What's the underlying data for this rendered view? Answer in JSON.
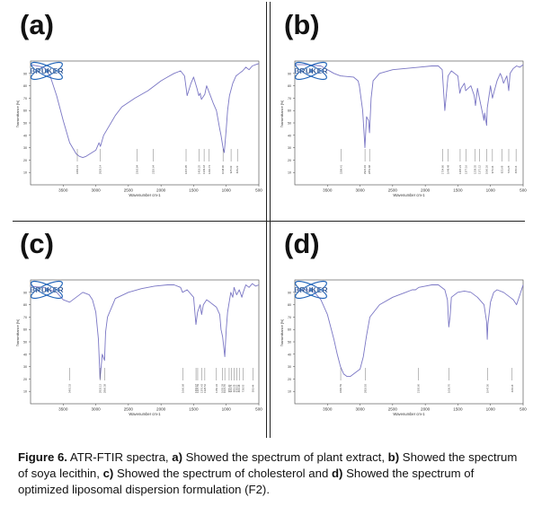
{
  "figure": {
    "caption": {
      "label": "Figure 6.",
      "t1": " ATR-FTIR spectra, ",
      "a": "a)",
      "t2": " Showed the spectrum of plant extract, ",
      "b": "b)",
      "t3": " Showed the spectrum of soya lecithin, ",
      "c": "c)",
      "t4": " Showed the spectrum of cholesterol and ",
      "d": "d)",
      "t5": " Showed the spectrum of optimized liposomal dispersion formulation (F2)."
    }
  },
  "colors": {
    "line": "#7a76c4",
    "axis": "#444444",
    "logo_blue": "#1f63b8",
    "logo_text": "#0d3b83"
  },
  "chart_data": [
    {
      "panel_label": "(a)",
      "type": "line",
      "logo": "BRUKER",
      "xlabel": "Wavenumber cm-1",
      "ylabel": "Transmittance [%]",
      "xlim": [
        4000,
        500
      ],
      "ylim": [
        0,
        100
      ],
      "xticks": [
        3500,
        3000,
        2500,
        2000,
        1500,
        1000,
        500
      ],
      "yticks": [
        10,
        20,
        30,
        40,
        50,
        60,
        70,
        80,
        90
      ],
      "series": [
        {
          "x": [
            4000,
            3800,
            3700,
            3600,
            3500,
            3400,
            3300,
            3250,
            3200,
            3150,
            3000,
            2950,
            2930,
            2880,
            2700,
            2600,
            2400,
            2200,
            2100,
            2000,
            1900,
            1800,
            1700,
            1640,
            1600,
            1540,
            1500,
            1450,
            1420,
            1400,
            1380,
            1330,
            1300,
            1250,
            1200,
            1150,
            1100,
            1080,
            1050,
            1030,
            1000,
            980,
            950,
            900,
            850,
            800,
            750,
            700,
            650,
            600,
            550,
            500
          ],
          "y": [
            97,
            95,
            88,
            72,
            52,
            34,
            25,
            23,
            22,
            23,
            28,
            34,
            31,
            40,
            56,
            63,
            70,
            76,
            80,
            84,
            87,
            90,
            92,
            88,
            72,
            82,
            87,
            78,
            72,
            74,
            69,
            73,
            80,
            73,
            66,
            60,
            45,
            40,
            30,
            26,
            45,
            60,
            72,
            82,
            88,
            90,
            92,
            95,
            93,
            96,
            97,
            98
          ]
        }
      ],
      "peaks": [
        "3283.31",
        "2929.14",
        "2363.84",
        "2119.64",
        "1615.95",
        "1419.25",
        "1339.18",
        "1260.73",
        "1048.90",
        "925.93",
        "828.23"
      ]
    },
    {
      "panel_label": "(b)",
      "type": "line",
      "logo": "BRUKER",
      "xlabel": "Wavenumber cm-1",
      "ylabel": "Transmittance [%]",
      "xlim": [
        4000,
        500
      ],
      "ylim": [
        0,
        100
      ],
      "xticks": [
        3500,
        3000,
        2500,
        2000,
        1500,
        1000,
        500
      ],
      "yticks": [
        10,
        20,
        30,
        40,
        50,
        60,
        70,
        80,
        90
      ],
      "series": [
        {
          "x": [
            4000,
            3800,
            3600,
            3500,
            3400,
            3300,
            3100,
            3030,
            3010,
            2960,
            2925,
            2900,
            2870,
            2855,
            2830,
            2800,
            2700,
            2500,
            2300,
            2100,
            1900,
            1800,
            1740,
            1700,
            1650,
            1600,
            1500,
            1470,
            1450,
            1400,
            1380,
            1300,
            1250,
            1230,
            1200,
            1170,
            1100,
            1090,
            1060,
            1050,
            1000,
            970,
            950,
            900,
            850,
            820,
            800,
            750,
            720,
            700,
            650,
            600,
            550,
            500
          ],
          "y": [
            97,
            97,
            96,
            93,
            90,
            88,
            87,
            84,
            80,
            60,
            30,
            55,
            52,
            42,
            70,
            84,
            90,
            93,
            94,
            95,
            96,
            96,
            93,
            60,
            88,
            92,
            88,
            74,
            78,
            82,
            76,
            80,
            72,
            64,
            78,
            70,
            52,
            58,
            48,
            62,
            80,
            70,
            74,
            84,
            90,
            86,
            82,
            88,
            76,
            90,
            94,
            96,
            95,
            97
          ]
        }
      ],
      "peaks": [
        "3288.41",
        "2923.93",
        "2853.88",
        "1734.86",
        "1649.48",
        "1465.23",
        "1377.16",
        "1239.35",
        "1171.12",
        "1060.26",
        "970.34",
        "823.69",
        "720.25",
        "608.14"
      ]
    },
    {
      "panel_label": "(c)",
      "type": "line",
      "logo": "BRUKER",
      "xlabel": "Wavenumber cm-1",
      "ylabel": "Transmittance [%]",
      "xlim": [
        4000,
        500
      ],
      "ylim": [
        0,
        100
      ],
      "xticks": [
        3500,
        3000,
        2500,
        2000,
        1500,
        1000,
        500
      ],
      "yticks": [
        10,
        20,
        30,
        40,
        50,
        60,
        70,
        80,
        90
      ],
      "series": [
        {
          "x": [
            4000,
            3800,
            3600,
            3500,
            3400,
            3300,
            3200,
            3100,
            3050,
            3000,
            2960,
            2935,
            2900,
            2866,
            2850,
            2820,
            2700,
            2500,
            2300,
            2100,
            1900,
            1800,
            1700,
            1670,
            1600,
            1500,
            1465,
            1440,
            1400,
            1378,
            1350,
            1300,
            1250,
            1200,
            1150,
            1100,
            1080,
            1055,
            1022,
            1000,
            980,
            955,
            930,
            900,
            880,
            840,
            800,
            760,
            740,
            700,
            650,
            600,
            550,
            500
          ],
          "y": [
            95,
            94,
            90,
            84,
            82,
            86,
            90,
            88,
            84,
            74,
            52,
            20,
            40,
            35,
            58,
            70,
            85,
            90,
            93,
            95,
            96,
            96,
            94,
            90,
            92,
            86,
            64,
            74,
            80,
            72,
            80,
            84,
            82,
            80,
            78,
            72,
            60,
            54,
            38,
            60,
            74,
            82,
            90,
            86,
            94,
            88,
            92,
            86,
            90,
            96,
            94,
            97,
            95,
            96
          ]
        }
      ],
      "peaks": [
        "3401.33",
        "2933.13",
        "2866.38",
        "1666.68",
        "1463.67",
        "1437.59",
        "1376.43",
        "1328.52",
        "1150.34",
        "1055.29",
        "1021.70",
        "955.40",
        "923.74",
        "880.29",
        "838.62",
        "800.38",
        "738.55",
        "590.44"
      ]
    },
    {
      "panel_label": "(d)",
      "type": "line",
      "logo": "BRUKER",
      "xlabel": "Wavenumber cm-1",
      "ylabel": "Transmittance [%]",
      "xlim": [
        4000,
        500
      ],
      "ylim": [
        0,
        100
      ],
      "xticks": [
        3500,
        3000,
        2500,
        2000,
        1500,
        1000,
        500
      ],
      "yticks": [
        10,
        20,
        30,
        40,
        50,
        60,
        70,
        80,
        90
      ],
      "series": [
        {
          "x": [
            4000,
            3800,
            3700,
            3600,
            3500,
            3400,
            3350,
            3300,
            3250,
            3200,
            3150,
            3100,
            3000,
            2950,
            2900,
            2850,
            2700,
            2500,
            2300,
            2200,
            2150,
            2100,
            2000,
            1900,
            1800,
            1700,
            1660,
            1640,
            1620,
            1600,
            1500,
            1400,
            1300,
            1200,
            1100,
            1060,
            1050,
            1040,
            1000,
            950,
            900,
            800,
            700,
            650,
            600,
            550,
            500
          ],
          "y": [
            92,
            92,
            90,
            84,
            72,
            52,
            40,
            30,
            24,
            22,
            22,
            24,
            28,
            38,
            55,
            70,
            80,
            86,
            90,
            92,
            92,
            94,
            95,
            96,
            96,
            92,
            84,
            62,
            70,
            86,
            90,
            91,
            90,
            86,
            80,
            66,
            52,
            64,
            82,
            90,
            92,
            90,
            86,
            84,
            80,
            88,
            96
          ]
        }
      ],
      "peaks": [
        "3296.59",
        "2918.93",
        "2103.60",
        "1636.70",
        "1047.50",
        "668.18"
      ]
    }
  ]
}
